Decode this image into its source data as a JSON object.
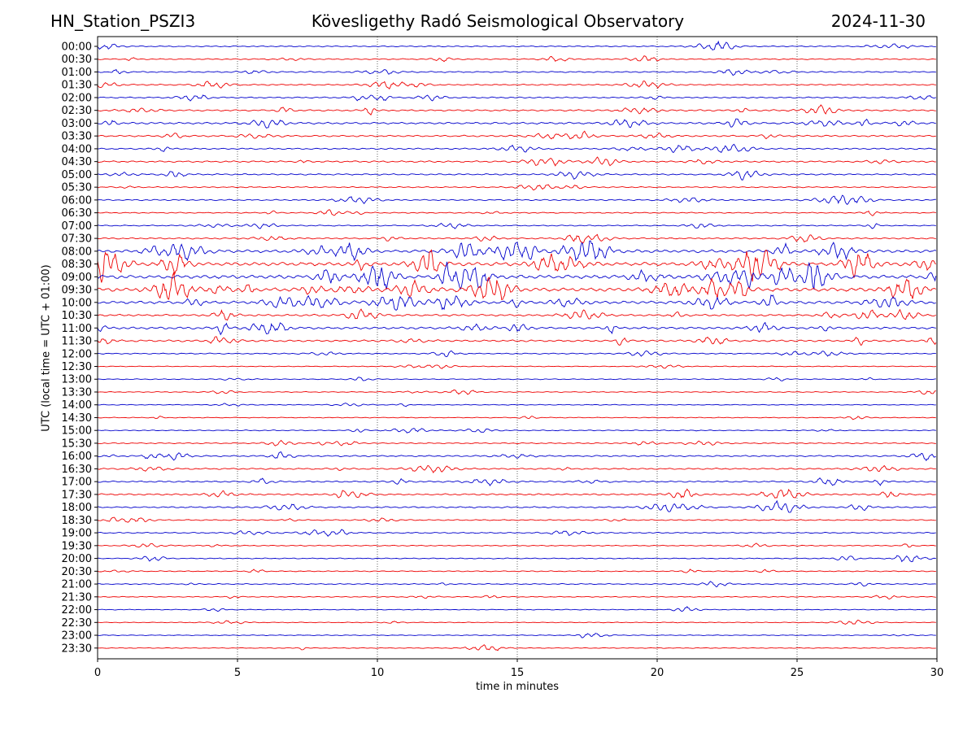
{
  "header": {
    "station": "HN_Station_PSZI3",
    "observatory": "Kövesligethy Radó Seismological Observatory",
    "date": "2024-11-30"
  },
  "chart_data": {
    "type": "line",
    "title": "Kövesligethy Radó Seismological Observatory",
    "xlabel": "time in minutes",
    "ylabel": "UTC (local time = UTC + 01:00)",
    "xlim": [
      0,
      30
    ],
    "x_ticks": [
      0,
      5,
      10,
      15,
      20,
      25,
      30
    ],
    "grid": "vertical dotted at 5-minute intervals",
    "trace_labels": [
      "00:00",
      "00:30",
      "01:00",
      "01:30",
      "02:00",
      "02:30",
      "03:00",
      "03:30",
      "04:00",
      "04:30",
      "05:00",
      "05:30",
      "06:00",
      "06:30",
      "07:00",
      "07:30",
      "08:00",
      "08:30",
      "09:00",
      "09:30",
      "10:00",
      "10:30",
      "11:00",
      "11:30",
      "12:00",
      "12:30",
      "13:00",
      "13:30",
      "14:00",
      "14:30",
      "15:00",
      "15:30",
      "16:00",
      "16:30",
      "17:00",
      "17:30",
      "18:00",
      "18:30",
      "19:00",
      "19:30",
      "20:00",
      "20:30",
      "21:00",
      "21:30",
      "22:00",
      "22:30",
      "23:00",
      "23:30"
    ],
    "trace_colors": [
      "#0000cc",
      "#ee0000"
    ],
    "trace_activity": [
      0.2,
      0.2,
      0.25,
      0.25,
      0.25,
      0.35,
      0.45,
      0.35,
      0.3,
      0.35,
      0.3,
      0.2,
      0.25,
      0.2,
      0.2,
      0.3,
      0.8,
      1.0,
      1.0,
      1.0,
      0.75,
      0.45,
      0.55,
      0.45,
      0.2,
      0.1,
      0.12,
      0.12,
      0.1,
      0.1,
      0.15,
      0.2,
      0.3,
      0.3,
      0.3,
      0.35,
      0.3,
      0.2,
      0.2,
      0.15,
      0.15,
      0.15,
      0.15,
      0.12,
      0.1,
      0.08,
      0.08,
      0.08
    ]
  }
}
